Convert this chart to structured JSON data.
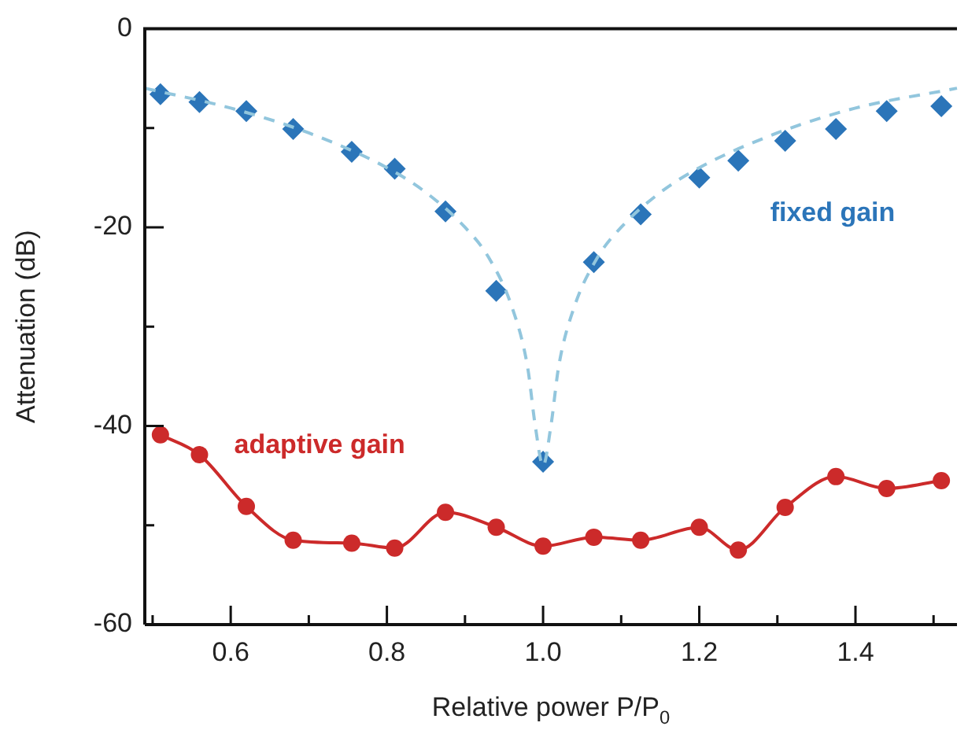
{
  "chart_data": {
    "type": "scatter",
    "xlabel": "Relative power P/P$_{0}$",
    "ylabel": "Attenuation (dB)",
    "xlim": [
      0.49,
      1.53
    ],
    "ylim": [
      -60,
      0
    ],
    "xticks": [
      {
        "value": 0.5,
        "label": null
      },
      0.6,
      {
        "value": 0.7,
        "label": null
      },
      0.8,
      {
        "value": 0.9,
        "label": null
      },
      {
        "value": 1.0,
        "label": "1.0"
      },
      {
        "value": 1.1,
        "label": null
      },
      1.2,
      {
        "value": 1.3,
        "label": null
      },
      1.4,
      {
        "value": 1.5,
        "label": null
      }
    ],
    "yticks": [
      -60,
      {
        "value": -50,
        "label": null
      },
      -40,
      {
        "value": -30,
        "label": null
      },
      -20,
      {
        "value": -10,
        "label": null
      },
      0
    ],
    "grid": false,
    "legend": false,
    "series": [
      {
        "type": "line",
        "color": "#92c6dd",
        "line_style": "dashed",
        "marker": "none",
        "x": [
          0.49,
          0.6,
          0.7,
          0.8,
          0.85,
          0.9,
          0.93,
          0.96,
          0.98,
          0.99,
          1.0,
          1.01,
          1.02,
          1.04,
          1.07,
          1.1,
          1.15,
          1.2,
          1.3,
          1.4,
          1.53
        ],
        "values": [
          -6,
          -8,
          -10.5,
          -14,
          -16.5,
          -20,
          -23,
          -28,
          -34,
          -40,
          -44,
          -40,
          -34,
          -28,
          -23,
          -20,
          -16.5,
          -14,
          -10.5,
          -8,
          -6
        ]
      },
      {
        "name": "fixed gain",
        "color": "#2b75b9",
        "marker": "diamond",
        "x": [
          0.51,
          0.56,
          0.62,
          0.68,
          0.755,
          0.81,
          0.875,
          0.94,
          1.0,
          1.065,
          1.125,
          1.2,
          1.25,
          1.31,
          1.375,
          1.44,
          1.51
        ],
        "values": [
          -6.6,
          -7.4,
          -8.3,
          -10.1,
          -12.4,
          -14.1,
          -18.4,
          -26.4,
          -43.6,
          -23.5,
          -18.7,
          -15,
          -13.3,
          -11.3,
          -10.1,
          -8.3,
          -7.8
        ]
      },
      {
        "name": "adaptive gain",
        "type": "line",
        "color": "#cc2a2a",
        "marker": "circle",
        "line_style": "solid",
        "x": [
          0.51,
          0.56,
          0.62,
          0.68,
          0.755,
          0.81,
          0.875,
          0.94,
          1.0,
          1.065,
          1.125,
          1.2,
          1.25,
          1.31,
          1.375,
          1.44,
          1.51
        ],
        "values": [
          -40.9,
          -42.9,
          -48.1,
          -51.5,
          -51.8,
          -52.3,
          -48.7,
          -50.2,
          -52.1,
          -51.2,
          -51.5,
          -50.2,
          -52.5,
          -48.2,
          -45.1,
          -46.3,
          -45.5
        ]
      }
    ]
  }
}
